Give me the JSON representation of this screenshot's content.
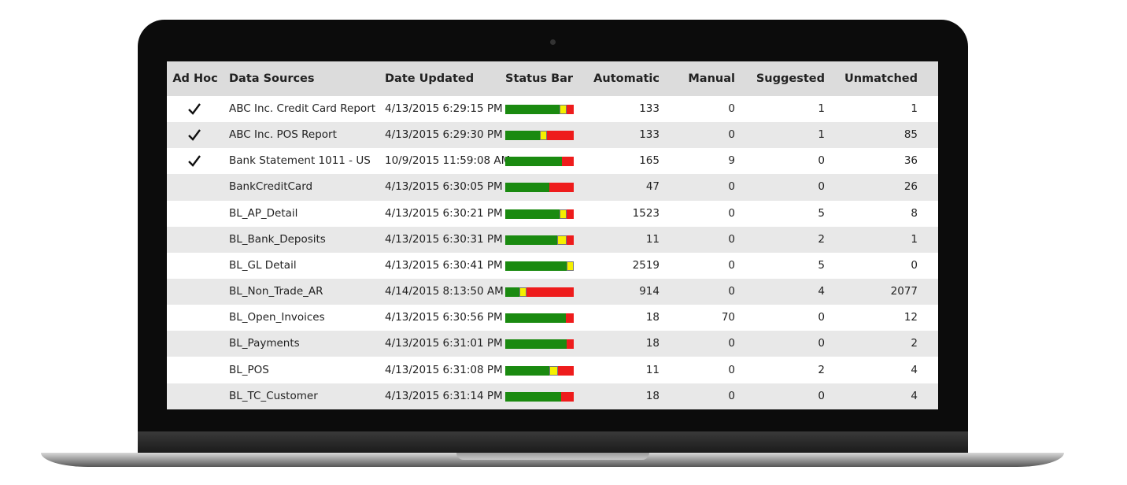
{
  "table": {
    "headers": [
      "Ad Hoc",
      "Data Sources",
      "Date Updated",
      "Status Bar",
      "Automatic",
      "Manual",
      "Suggested",
      "Unmatched"
    ],
    "rows": [
      {
        "ad_hoc": true,
        "source": "ABC Inc. Credit Card Report",
        "date": "4/13/2015 6:29:15 PM",
        "automatic": 133,
        "manual": 0,
        "suggested": 1,
        "unmatched": 1
      },
      {
        "ad_hoc": true,
        "source": "ABC Inc. POS Report",
        "date": "4/13/2015 6:29:30 PM",
        "automatic": 133,
        "manual": 0,
        "suggested": 1,
        "unmatched": 85
      },
      {
        "ad_hoc": true,
        "source": "Bank Statement 1011 - US",
        "date": "10/9/2015 11:59:08 AM",
        "automatic": 165,
        "manual": 9,
        "suggested": 0,
        "unmatched": 36
      },
      {
        "ad_hoc": false,
        "source": "BankCreditCard",
        "date": "4/13/2015 6:30:05 PM",
        "automatic": 47,
        "manual": 0,
        "suggested": 0,
        "unmatched": 26
      },
      {
        "ad_hoc": false,
        "source": "BL_AP_Detail",
        "date": "4/13/2015 6:30:21 PM",
        "automatic": 1523,
        "manual": 0,
        "suggested": 5,
        "unmatched": 8
      },
      {
        "ad_hoc": false,
        "source": "BL_Bank_Deposits",
        "date": "4/13/2015 6:30:31 PM",
        "automatic": 11,
        "manual": 0,
        "suggested": 2,
        "unmatched": 1
      },
      {
        "ad_hoc": false,
        "source": "BL_GL Detail",
        "date": "4/13/2015 6:30:41 PM",
        "automatic": 2519,
        "manual": 0,
        "suggested": 5,
        "unmatched": 0
      },
      {
        "ad_hoc": false,
        "source": "BL_Non_Trade_AR",
        "date": "4/14/2015 8:13:50 AM",
        "automatic": 914,
        "manual": 0,
        "suggested": 4,
        "unmatched": 2077
      },
      {
        "ad_hoc": false,
        "source": "BL_Open_Invoices",
        "date": "4/13/2015 6:30:56 PM",
        "automatic": 18,
        "manual": 70,
        "suggested": 0,
        "unmatched": 12
      },
      {
        "ad_hoc": false,
        "source": "BL_Payments",
        "date": "4/13/2015 6:31:01 PM",
        "automatic": 18,
        "manual": 0,
        "suggested": 0,
        "unmatched": 2
      },
      {
        "ad_hoc": false,
        "source": "BL_POS",
        "date": "4/13/2015 6:31:08 PM",
        "automatic": 11,
        "manual": 0,
        "suggested": 2,
        "unmatched": 4
      },
      {
        "ad_hoc": false,
        "source": "BL_TC_Customer",
        "date": "4/13/2015 6:31:14 PM",
        "automatic": 18,
        "manual": 0,
        "suggested": 0,
        "unmatched": 4
      }
    ]
  }
}
